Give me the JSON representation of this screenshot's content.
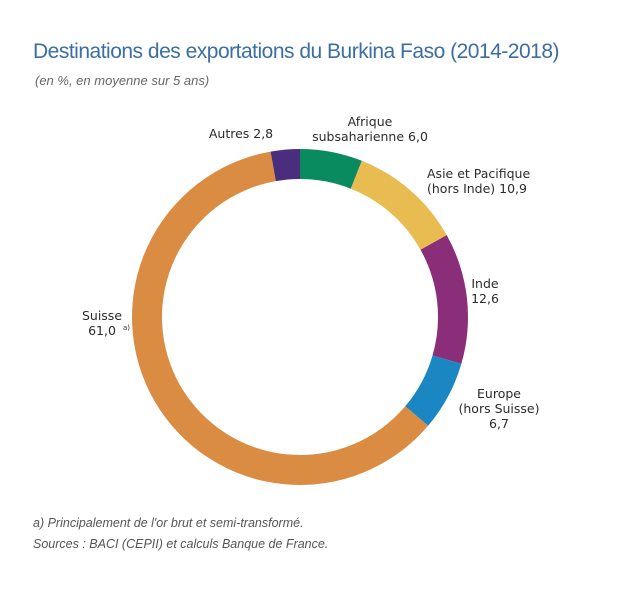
{
  "title": "Destinations des exportations du Burkina Faso (2014-2018)",
  "subtitle": "(en %, en moyenne sur 5 ans)",
  "footnotes": {
    "note_a": "a) Principalement de l'or brut et semi-transformé.",
    "sources": "Sources : BACI (CEPII) et calculs Banque de France."
  },
  "colors": {
    "title": "#3a6ea5",
    "background": "#ffffff"
  },
  "chart_data": {
    "type": "pie",
    "donut": true,
    "title": "Destinations des exportations du Burkina Faso (2014-2018)",
    "subtitle": "(en %, en moyenne sur 5 ans)",
    "unit": "%",
    "slices": [
      {
        "name": "Afrique subsaharienne",
        "value": 6.0,
        "color": "#0a8a5f",
        "label_lines": [
          "Afrique",
          "subsaharienne 6,0"
        ]
      },
      {
        "name": "Asie et Pacifique (hors Inde)",
        "value": 10.9,
        "color": "#e9bc52",
        "label_lines": [
          "Asie et Pacifique",
          "(hors Inde) 10,9"
        ]
      },
      {
        "name": "Inde",
        "value": 12.6,
        "color": "#8b2e7a",
        "label_lines": [
          "Inde",
          "12,6"
        ]
      },
      {
        "name": "Europe (hors Suisse)",
        "value": 6.7,
        "color": "#1a86c2",
        "label_lines": [
          "Europe",
          "(hors Suisse)",
          "6,7"
        ]
      },
      {
        "name": "Suisse",
        "value": 61.0,
        "color": "#d98c42",
        "label_lines": [
          "Suisse",
          "61,0"
        ],
        "label_sup": "a)"
      },
      {
        "name": "Autres",
        "value": 2.8,
        "color": "#4a2d7d",
        "label_lines": [
          "Autres 2,8"
        ]
      }
    ],
    "start_angle": "top",
    "direction": "clockwise"
  }
}
